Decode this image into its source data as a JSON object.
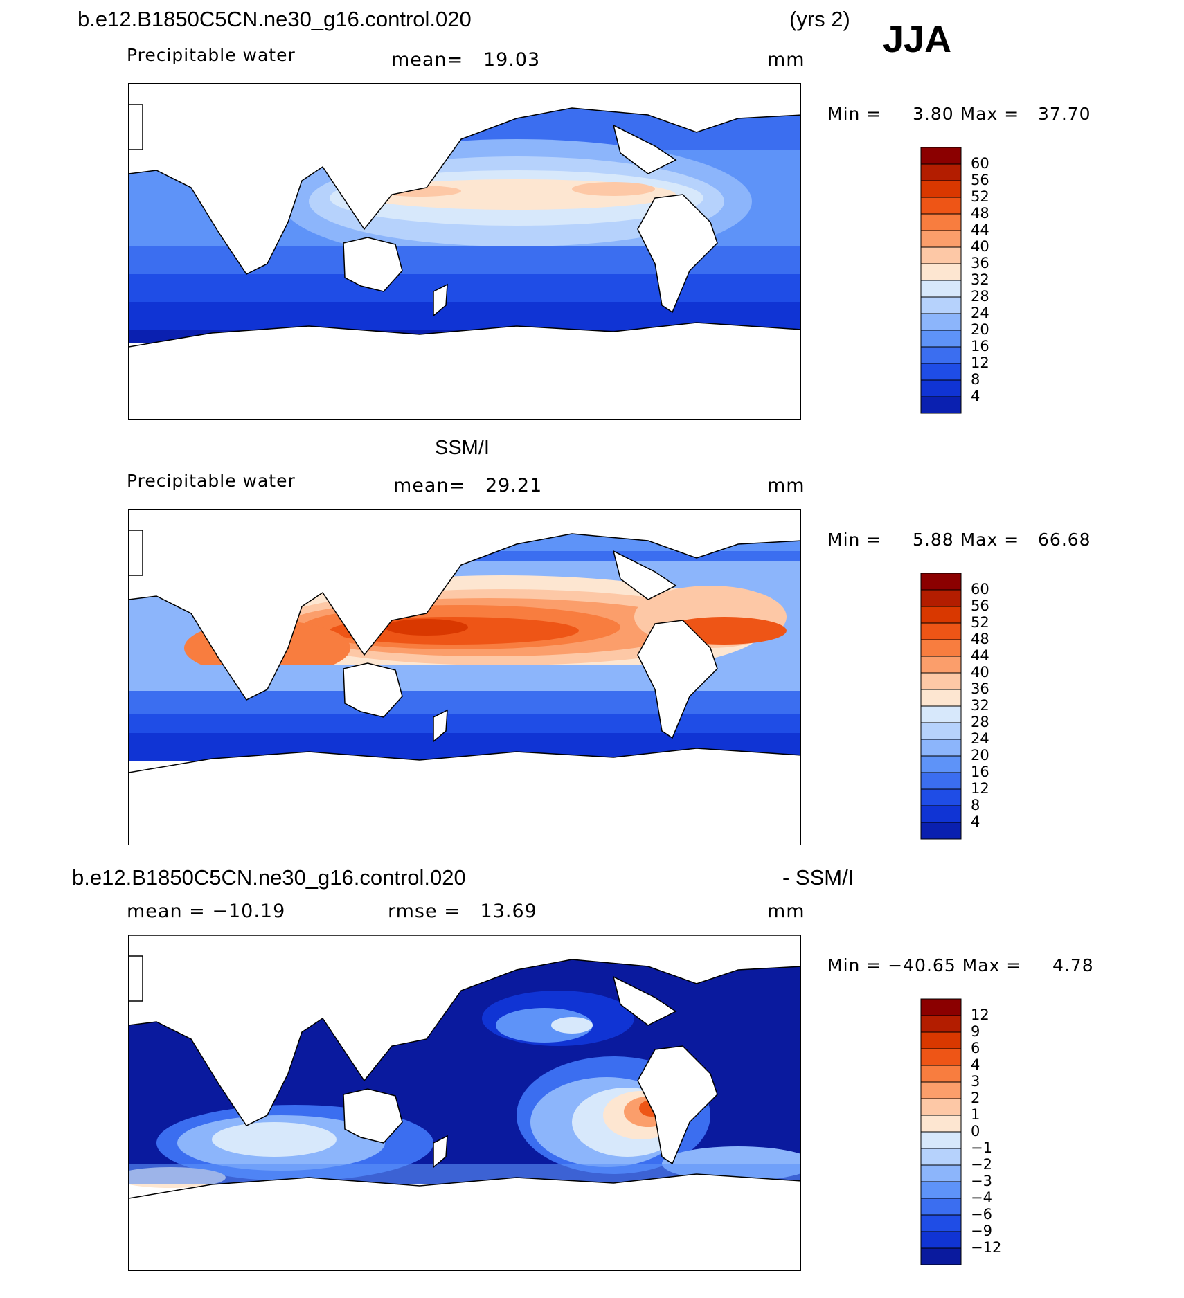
{
  "header": {
    "case_name": "b.e12.B1850C5CN.ne30_g16.control.020",
    "years": "(yrs 2)",
    "season": "JJA"
  },
  "panel1": {
    "variable": "Precipitable water",
    "mean_text": "mean=   19.03",
    "units": "mm",
    "minmax": "Min =     3.80 Max =   37.70"
  },
  "panel2": {
    "title": "SSM/I",
    "variable": "Precipitable water",
    "mean_text": "mean=   29.21",
    "units": "mm",
    "minmax": "Min =     5.88 Max =   66.68"
  },
  "panel3": {
    "title_left": "b.e12.B1850C5CN.ne30_g16.control.020",
    "title_right": "- SSM/I",
    "mean_text": "mean = −10.19",
    "rmse_text": "rmse =   13.69",
    "units": "mm",
    "minmax": "Min = −40.65 Max =     4.78"
  },
  "colorbar_abs": {
    "labels": [
      "60",
      "56",
      "52",
      "48",
      "44",
      "40",
      "36",
      "32",
      "28",
      "24",
      "20",
      "16",
      "12",
      "8",
      "4"
    ],
    "colors": [
      "#8b0000",
      "#b31d00",
      "#d93800",
      "#ee5516",
      "#f87d3f",
      "#fb9e6b",
      "#fdc8a6",
      "#fde6d1",
      "#d7e8fb",
      "#b6d2fc",
      "#8cb5fb",
      "#5e93f8",
      "#3b6ef0",
      "#1f4de6",
      "#1034d4",
      "#0a20b0"
    ]
  },
  "colorbar_diff": {
    "labels": [
      "12",
      "9",
      "6",
      "4",
      "3",
      "2",
      "1",
      "0",
      "−1",
      "−2",
      "−3",
      "−4",
      "−6",
      "−9",
      "−12"
    ],
    "colors": [
      "#8b0000",
      "#b31d00",
      "#d93800",
      "#ee5516",
      "#f87d3f",
      "#fb9e6b",
      "#fdc8a6",
      "#fde6d1",
      "#d7e8fb",
      "#b6d2fc",
      "#8cb5fb",
      "#5e93f8",
      "#3b6ef0",
      "#1f4de6",
      "#1034d4",
      "#0a1a9e"
    ]
  }
}
